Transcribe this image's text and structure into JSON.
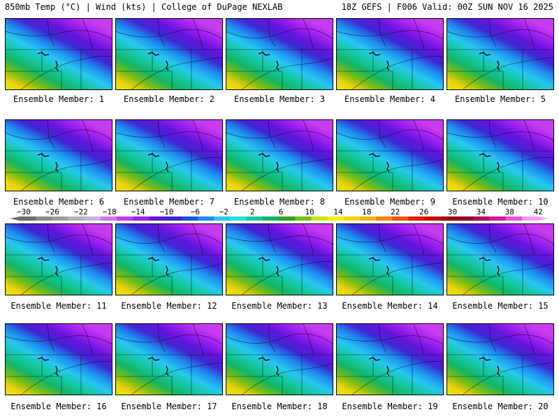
{
  "header": {
    "title": "850mb Temp (°C) | Wind (kts) | College of DuPage NEXLAB",
    "run_info": "18Z GEFS | F006 Valid: 00Z SUN NOV 16 2025"
  },
  "members": [
    {
      "label": "Ensemble Member: 1"
    },
    {
      "label": "Ensemble Member: 2"
    },
    {
      "label": "Ensemble Member: 3"
    },
    {
      "label": "Ensemble Member: 4"
    },
    {
      "label": "Ensemble Member: 5"
    },
    {
      "label": "Ensemble Member: 6"
    },
    {
      "label": "Ensemble Member: 7"
    },
    {
      "label": "Ensemble Member: 8"
    },
    {
      "label": "Ensemble Member: 9"
    },
    {
      "label": "Ensemble Member: 10"
    },
    {
      "label": "Ensemble Member: 11"
    },
    {
      "label": "Ensemble Member: 12"
    },
    {
      "label": "Ensemble Member: 13"
    },
    {
      "label": "Ensemble Member: 14"
    },
    {
      "label": "Ensemble Member: 15"
    },
    {
      "label": "Ensemble Member: 16"
    },
    {
      "label": "Ensemble Member: 17"
    },
    {
      "label": "Ensemble Member: 18"
    },
    {
      "label": "Ensemble Member: 19"
    },
    {
      "label": "Ensemble Member: 20"
    }
  ],
  "colorbar": {
    "labels": [
      "−30",
      "−26",
      "−22",
      "−18",
      "−14",
      "−10",
      "−6",
      "−2",
      "2",
      "6",
      "10",
      "14",
      "18",
      "22",
      "26",
      "30",
      "34",
      "38",
      "42"
    ],
    "colors": [
      "#6e6e6e",
      "#8a8a8a",
      "#9e9e9e",
      "#b4b4b4",
      "#c8b4dc",
      "#d278e6",
      "#c83cf0",
      "#a020f0",
      "#6414dc",
      "#3c28d2",
      "#1e50e6",
      "#1e8cf0",
      "#28c8f0",
      "#1ee6d2",
      "#14c8a0",
      "#14b464",
      "#32a028",
      "#78be14",
      "#c8e614",
      "#f0f014",
      "#f5d20a",
      "#f5b40a",
      "#f5820a",
      "#f0500a",
      "#e61e0a",
      "#c80a0a",
      "#a0000a",
      "#8c0028",
      "#b40064",
      "#dc14a0",
      "#f050dc",
      "#f5a0f0"
    ]
  },
  "map": {
    "gradient": [
      "#dcf00a",
      "#f0d20a",
      "#78be14",
      "#14b464",
      "#14c8a0",
      "#28c8f0",
      "#1e8cf0",
      "#3c28d2",
      "#6414dc",
      "#a020f0",
      "#c83cf0"
    ]
  }
}
